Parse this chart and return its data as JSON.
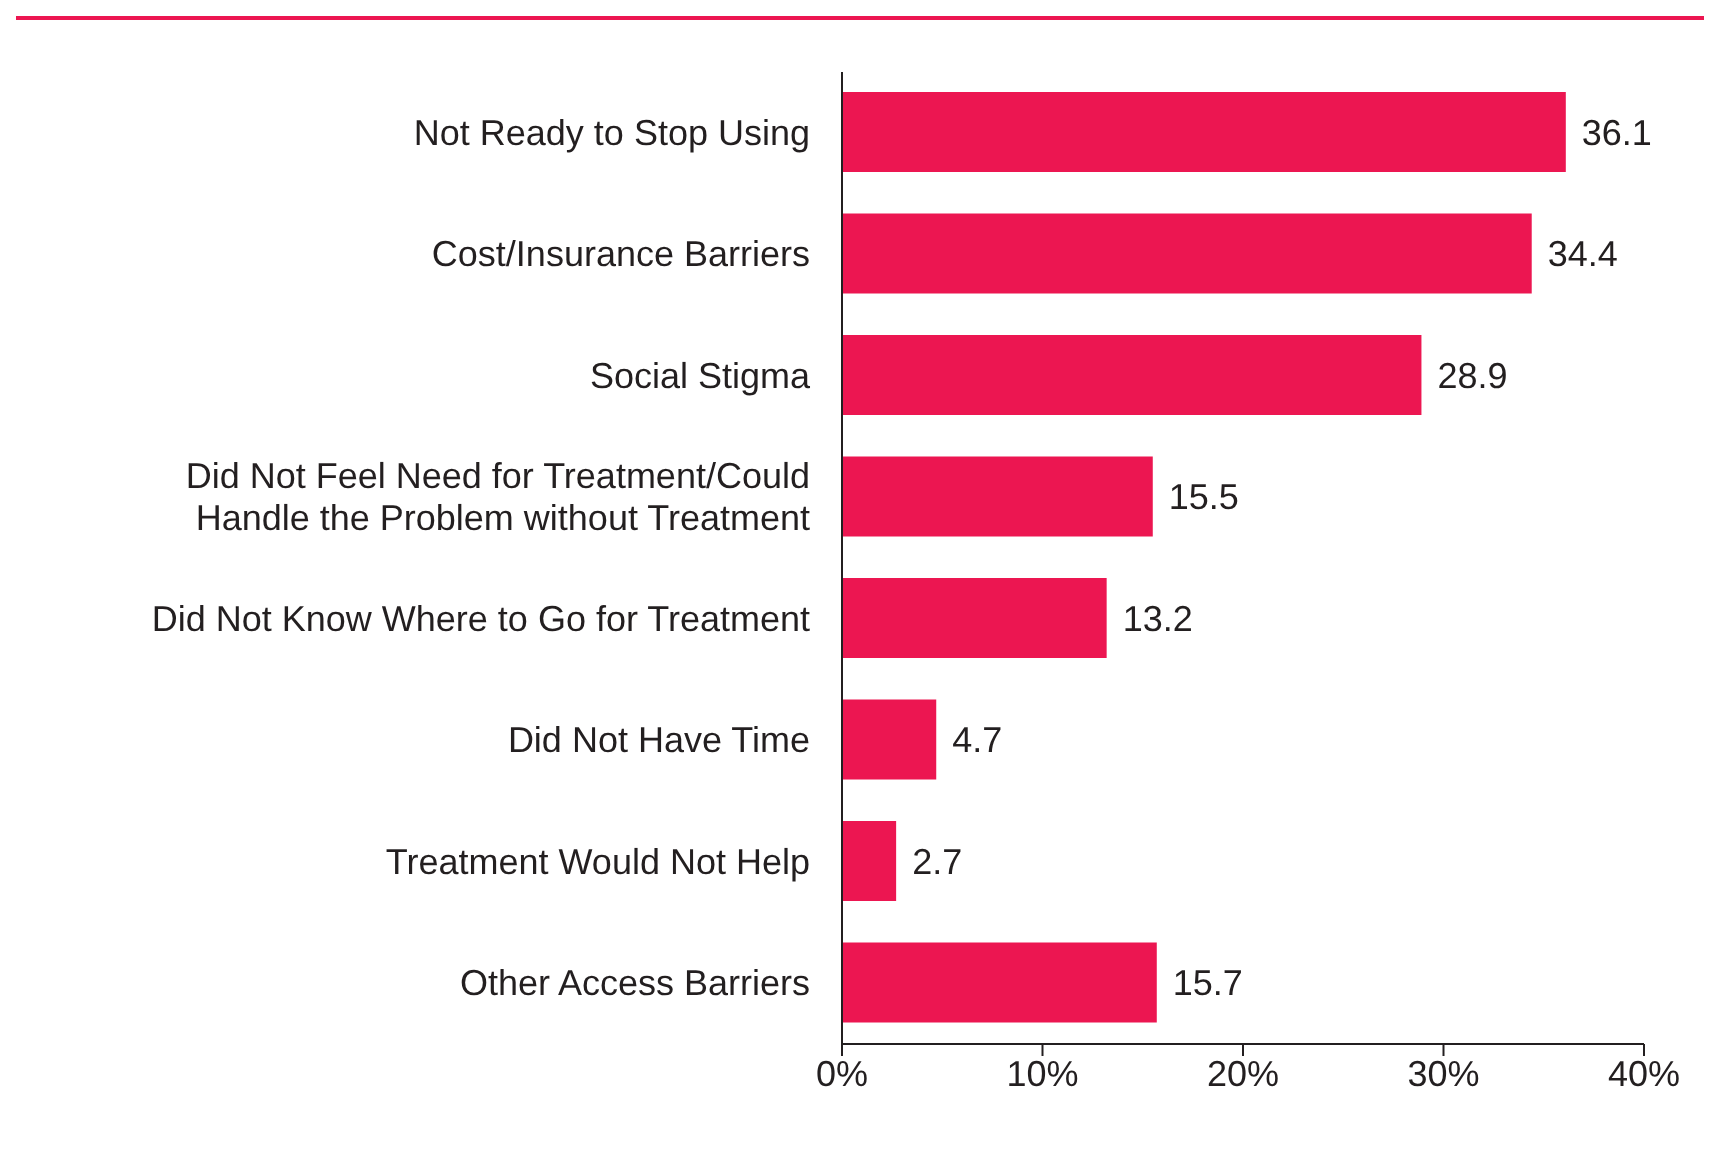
{
  "chart_data": {
    "type": "bar",
    "orientation": "horizontal",
    "categories": [
      "Not Ready to Stop Using",
      "Cost/Insurance Barriers",
      "Social Stigma",
      "Did Not Feel Need for Treatment/Could Handle the Problem without Treatment",
      "Did Not Know Where to Go for Treatment",
      "Did Not Have Time",
      "Treatment Would Not Help",
      "Other Access Barriers"
    ],
    "values": [
      36.1,
      34.4,
      28.9,
      15.5,
      13.2,
      4.7,
      2.7,
      15.7
    ],
    "color": "#ec1651",
    "xlim": [
      0,
      40
    ],
    "xticks": [
      {
        "value": 0,
        "label": "0%"
      },
      {
        "value": 10,
        "label": "10%"
      },
      {
        "value": 20,
        "label": "20%"
      },
      {
        "value": 30,
        "label": "30%"
      },
      {
        "value": 40,
        "label": "40%"
      }
    ],
    "data_labels": true,
    "grid": false,
    "legend": false
  }
}
